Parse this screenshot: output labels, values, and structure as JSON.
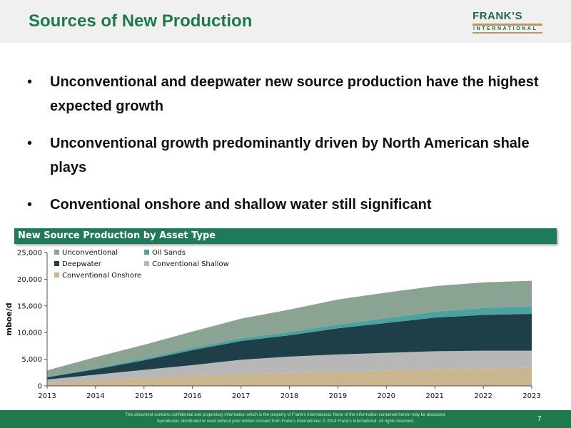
{
  "header": {
    "title": "Sources of New Production",
    "logo_main": "FRANK’S",
    "logo_sub": "INTERNATIONAL"
  },
  "bullets": [
    "Unconventional and deepwater new source production have the highest expected growth",
    "Unconventional growth predominantly driven by North American shale plays",
    "Conventional onshore and shallow water still significant"
  ],
  "bullet_symbol": "•",
  "chart_banner": "New Source Production by Asset Type",
  "footer": {
    "disclaimer": "This document contains confidential and proprietary information which is the property of Frank’s International. None of the information contained herein may be disclosed, reproduced, distributed or used without prior written consent from Frank’s International. © 2014 Frank’s International. All rights reserved.",
    "page_number": "7"
  },
  "colors": {
    "brand_green": "#1e7a4a",
    "banner_green": "#1e7a5a",
    "logo_gold": "#b79a5b"
  },
  "chart_data": {
    "type": "area",
    "stacked": true,
    "title": "New Source Production by Asset Type",
    "ylabel": "mboe/d",
    "xlabel": "",
    "ylim": [
      0,
      25000
    ],
    "yticks": [
      0,
      5000,
      10000,
      15000,
      20000,
      25000
    ],
    "ytick_labels": [
      "0",
      "5,000",
      "10,000",
      "15,000",
      "20,000",
      "25,000"
    ],
    "x": [
      "2013",
      "2014",
      "2015",
      "2016",
      "2017",
      "2018",
      "2019",
      "2020",
      "2021",
      "2022",
      "2023"
    ],
    "legend_position": "top-left",
    "grid": false,
    "series": [
      {
        "name": "Conventional Onshore",
        "color": "#c9b58e",
        "values": [
          500,
          1000,
          1500,
          1900,
          2200,
          2400,
          2700,
          2900,
          3100,
          3300,
          3400
        ]
      },
      {
        "name": "Conventional Shallow",
        "color": "#b7b7b7",
        "values": [
          700,
          1100,
          1500,
          2000,
          2700,
          3100,
          3200,
          3300,
          3400,
          3300,
          3200
        ]
      },
      {
        "name": "Deepwater",
        "color": "#1f3f48",
        "values": [
          400,
          1000,
          1800,
          2800,
          3500,
          4000,
          4900,
          5600,
          6300,
          6700,
          6900
        ]
      },
      {
        "name": "Oil Sands",
        "color": "#4aa3a0",
        "values": [
          100,
          200,
          300,
          400,
          500,
          600,
          700,
          900,
          1100,
          1300,
          1400
        ]
      },
      {
        "name": "Unconventional",
        "color": "#8aa393",
        "values": [
          1200,
          2100,
          2600,
          3100,
          3700,
          4200,
          4700,
          4800,
          4800,
          4800,
          4800
        ]
      }
    ],
    "legend_order": [
      "Unconventional",
      "Oil Sands",
      "Deepwater",
      "Conventional Shallow",
      "Conventional Onshore"
    ]
  }
}
